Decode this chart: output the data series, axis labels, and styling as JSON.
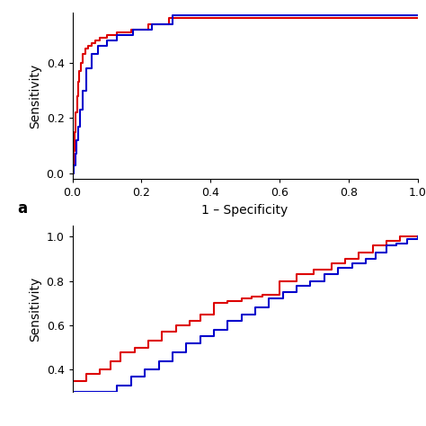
{
  "top_plot": {
    "xlabel": "1 – Specificity",
    "ylabel": "Sensitivity",
    "xlim": [
      0,
      1.0
    ],
    "ylim": [
      -0.02,
      0.58
    ],
    "xticks": [
      0,
      0.2,
      0.4,
      0.6,
      0.8,
      1.0
    ],
    "yticks": [
      0,
      0.2,
      0.4
    ],
    "red_color": "#dd0000",
    "blue_color": "#0000cc",
    "red_x": [
      0,
      0.005,
      0.007,
      0.01,
      0.013,
      0.016,
      0.02,
      0.025,
      0.03,
      0.038,
      0.045,
      0.055,
      0.065,
      0.08,
      0.1,
      0.13,
      0.17,
      0.22,
      0.28,
      1.0
    ],
    "red_y": [
      0,
      0.08,
      0.15,
      0.22,
      0.28,
      0.33,
      0.37,
      0.4,
      0.43,
      0.45,
      0.46,
      0.47,
      0.48,
      0.49,
      0.5,
      0.51,
      0.52,
      0.54,
      0.56,
      0.56
    ],
    "blue_x": [
      0,
      0.005,
      0.008,
      0.012,
      0.016,
      0.022,
      0.03,
      0.04,
      0.055,
      0.075,
      0.1,
      0.13,
      0.175,
      0.23,
      0.29,
      1.0
    ],
    "blue_y": [
      0,
      0.03,
      0.07,
      0.12,
      0.17,
      0.23,
      0.3,
      0.38,
      0.43,
      0.46,
      0.48,
      0.5,
      0.52,
      0.54,
      0.57,
      0.57
    ]
  },
  "bottom_plot": {
    "ylabel": "Sensitivity",
    "xlim": [
      0,
      1.0
    ],
    "ylim": [
      0.3,
      1.05
    ],
    "yticks": [
      0.4,
      0.6,
      0.8,
      1.0
    ],
    "red_color": "#dd0000",
    "blue_color": "#0000cc",
    "red_x": [
      0.0,
      0.04,
      0.08,
      0.11,
      0.14,
      0.18,
      0.22,
      0.26,
      0.3,
      0.34,
      0.37,
      0.41,
      0.45,
      0.49,
      0.52,
      0.55,
      0.6,
      0.65,
      0.7,
      0.75,
      0.79,
      0.83,
      0.87,
      0.91,
      0.95,
      0.98,
      1.0
    ],
    "red_y": [
      0.35,
      0.38,
      0.4,
      0.44,
      0.48,
      0.5,
      0.53,
      0.57,
      0.6,
      0.62,
      0.65,
      0.7,
      0.71,
      0.72,
      0.73,
      0.74,
      0.8,
      0.83,
      0.85,
      0.88,
      0.9,
      0.93,
      0.96,
      0.98,
      1.0,
      1.0,
      1.0
    ],
    "blue_x": [
      0.0,
      0.13,
      0.17,
      0.21,
      0.25,
      0.29,
      0.33,
      0.37,
      0.41,
      0.45,
      0.49,
      0.53,
      0.57,
      0.61,
      0.65,
      0.69,
      0.73,
      0.77,
      0.81,
      0.85,
      0.88,
      0.91,
      0.94,
      0.97,
      1.0
    ],
    "blue_y": [
      0.3,
      0.33,
      0.37,
      0.4,
      0.44,
      0.48,
      0.52,
      0.55,
      0.58,
      0.62,
      0.65,
      0.68,
      0.72,
      0.75,
      0.78,
      0.8,
      0.83,
      0.86,
      0.88,
      0.9,
      0.93,
      0.96,
      0.97,
      0.99,
      1.0
    ]
  },
  "label_a": "a"
}
